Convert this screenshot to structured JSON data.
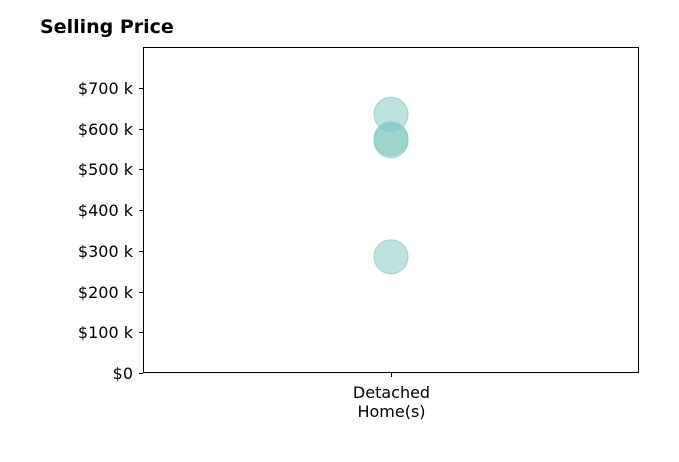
{
  "chart_data": {
    "type": "scatter",
    "title": "Selling Price",
    "xlabel": "",
    "ylabel": "",
    "categories": [
      "Detached\nHome(s)"
    ],
    "category_lines": [
      [
        "Detached",
        "Home(s)"
      ]
    ],
    "y_ticks": [
      0,
      100000,
      200000,
      300000,
      400000,
      500000,
      600000,
      700000
    ],
    "y_tick_labels": [
      "$0",
      "$100 k",
      "$200 k",
      "$300 k",
      "$400 k",
      "$500 k",
      "$600 k",
      "$700 k"
    ],
    "ylim": [
      0,
      800000
    ],
    "grid": false,
    "series": [
      {
        "color": "#7fc7c0",
        "points": [
          {
            "category": "Detached\nHome(s)",
            "y": 635000
          },
          {
            "category": "Detached\nHome(s)",
            "y": 575000
          },
          {
            "category": "Detached\nHome(s)",
            "y": 570000
          },
          {
            "category": "Detached\nHome(s)",
            "y": 285000
          }
        ]
      }
    ]
  }
}
